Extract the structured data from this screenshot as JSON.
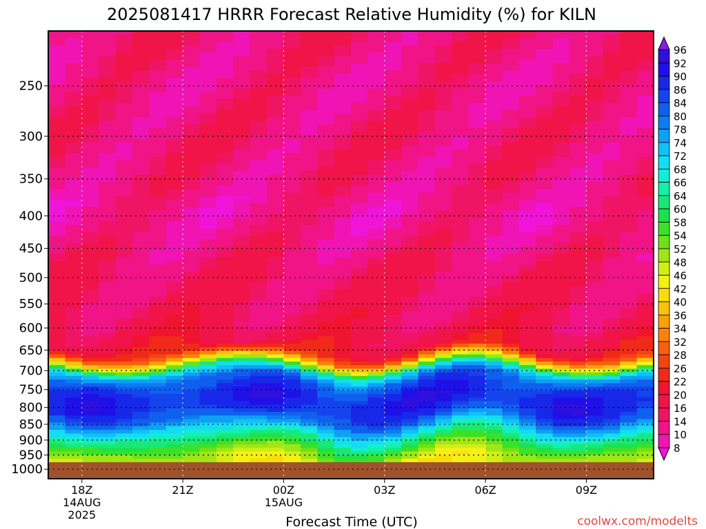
{
  "chart_data": {
    "type": "heatmap",
    "title": "2025081417 HRRR Forecast Relative Humidity (%) for KILN",
    "xlabel": "Forecast Time (UTC)",
    "ylabel": "",
    "credit": "coolwx.com/modelts",
    "y_scale": "log",
    "ylim": [
      1035,
      205
    ],
    "xlim": [
      17,
      35
    ],
    "y_ticks": [
      250,
      300,
      350,
      400,
      450,
      500,
      550,
      600,
      650,
      700,
      750,
      800,
      850,
      900,
      950,
      1000
    ],
    "x_ticks": [
      {
        "x": 18,
        "labels": [
          "18Z",
          "14AUG",
          "2025"
        ]
      },
      {
        "x": 21,
        "labels": [
          "21Z"
        ]
      },
      {
        "x": 24,
        "labels": [
          "00Z",
          "15AUG"
        ]
      },
      {
        "x": 27,
        "labels": [
          "03Z"
        ]
      },
      {
        "x": 30,
        "labels": [
          "06Z"
        ]
      },
      {
        "x": 33,
        "labels": [
          "09Z"
        ]
      }
    ],
    "grid": true,
    "ground_level_hpa": 975,
    "colorbar": {
      "placement": "right",
      "labels": [
        96,
        92,
        90,
        86,
        84,
        80,
        78,
        74,
        72,
        68,
        66,
        64,
        60,
        58,
        54,
        52,
        48,
        46,
        42,
        40,
        36,
        34,
        32,
        28,
        26,
        22,
        20,
        16,
        14,
        10,
        8
      ],
      "colors": [
        "#8a1ee6",
        "#3010dc",
        "#2010e8",
        "#1828e8",
        "#1444ec",
        "#1060f0",
        "#0e7cf0",
        "#0ea0f4",
        "#10c0f8",
        "#14dcf4",
        "#14ecd4",
        "#14f0a8",
        "#18e878",
        "#1ee04c",
        "#3ce028",
        "#70e018",
        "#a0e614",
        "#d0ee14",
        "#f4f014",
        "#f8dc10",
        "#fcc00e",
        "#fca00c",
        "#fc800c",
        "#f8600c",
        "#f44414",
        "#f02a18",
        "#f01430",
        "#f01448",
        "#f01464",
        "#f01486",
        "#f014b4",
        "#f014d8"
      ]
    },
    "profile": [
      {
        "p": 975,
        "rh": 45
      },
      {
        "p": 950,
        "rh": 50
      },
      {
        "p": 925,
        "rh": 55
      },
      {
        "p": 900,
        "rh": 62
      },
      {
        "p": 875,
        "rh": 68
      },
      {
        "p": 850,
        "rh": 76
      },
      {
        "p": 825,
        "rh": 84
      },
      {
        "p": 800,
        "rh": 88
      },
      {
        "p": 775,
        "rh": 89
      },
      {
        "p": 750,
        "rh": 87
      },
      {
        "p": 725,
        "rh": 82
      },
      {
        "p": 700,
        "rh": 70
      },
      {
        "p": 685,
        "rh": 50
      },
      {
        "p": 670,
        "rh": 34
      },
      {
        "p": 655,
        "rh": 24
      },
      {
        "p": 640,
        "rh": 20
      },
      {
        "p": 600,
        "rh": 17
      },
      {
        "p": 550,
        "rh": 16
      },
      {
        "p": 500,
        "rh": 15
      },
      {
        "p": 450,
        "rh": 13
      },
      {
        "p": 400,
        "rh": 11
      },
      {
        "p": 350,
        "rh": 13
      },
      {
        "p": 300,
        "rh": 14
      },
      {
        "p": 250,
        "rh": 12
      },
      {
        "p": 205,
        "rh": 14
      }
    ]
  }
}
